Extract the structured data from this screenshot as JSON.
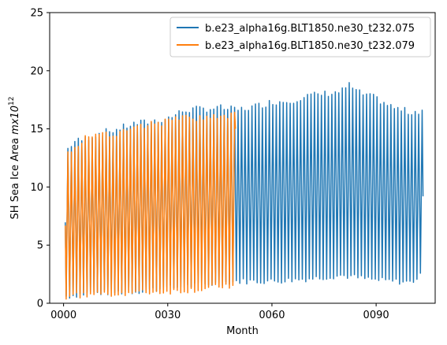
{
  "chart_data": {
    "type": "line",
    "title": "",
    "xlabel": "Month",
    "ylabel_main": "SH Sea Ice Area ",
    "ylabel_unit_base": "mx10",
    "ylabel_unit_exp": "12",
    "xlim": [
      -4,
      107
    ],
    "ylim": [
      0,
      25
    ],
    "x_ticks": [
      0,
      30,
      60,
      90
    ],
    "x_tick_labels": [
      "0000",
      "0030",
      "0060",
      "0090"
    ],
    "y_ticks": [
      0,
      5,
      10,
      15,
      20,
      25
    ],
    "y_tick_labels": [
      "0",
      "5",
      "10",
      "15",
      "20",
      "25"
    ],
    "grid": false,
    "legend_position": "upper-right",
    "cycle_note_x_units": "years",
    "series": [
      {
        "name": "b.e23_alpha16g.BLT1850.ne30_t232.075",
        "color": "#1f77b4",
        "x_start": 0.5,
        "x_end": 103.5,
        "max_by_year": [
          {
            "x": 1,
            "y": 13.2
          },
          {
            "x": 3,
            "y": 13.9
          },
          {
            "x": 5,
            "y": 14.0
          },
          {
            "x": 10,
            "y": 14.6
          },
          {
            "x": 15,
            "y": 14.9
          },
          {
            "x": 20,
            "y": 15.4
          },
          {
            "x": 25,
            "y": 15.6
          },
          {
            "x": 30,
            "y": 15.9
          },
          {
            "x": 35,
            "y": 16.6
          },
          {
            "x": 40,
            "y": 16.7
          },
          {
            "x": 45,
            "y": 16.8
          },
          {
            "x": 50,
            "y": 16.6
          },
          {
            "x": 55,
            "y": 16.9
          },
          {
            "x": 60,
            "y": 17.3
          },
          {
            "x": 65,
            "y": 17.4
          },
          {
            "x": 70,
            "y": 17.8
          },
          {
            "x": 75,
            "y": 18.0
          },
          {
            "x": 80,
            "y": 18.2
          },
          {
            "x": 82,
            "y": 18.8
          },
          {
            "x": 85,
            "y": 18.1
          },
          {
            "x": 90,
            "y": 17.6
          },
          {
            "x": 95,
            "y": 16.8
          },
          {
            "x": 100,
            "y": 16.4
          },
          {
            "x": 103,
            "y": 16.6
          }
        ],
        "min_by_year": [
          {
            "x": 1,
            "y": 0.6
          },
          {
            "x": 5,
            "y": 0.8
          },
          {
            "x": 10,
            "y": 0.9
          },
          {
            "x": 20,
            "y": 1.0
          },
          {
            "x": 30,
            "y": 1.3
          },
          {
            "x": 40,
            "y": 1.6
          },
          {
            "x": 50,
            "y": 1.9
          },
          {
            "x": 60,
            "y": 1.9
          },
          {
            "x": 70,
            "y": 2.1
          },
          {
            "x": 80,
            "y": 2.4
          },
          {
            "x": 90,
            "y": 2.0
          },
          {
            "x": 100,
            "y": 1.8
          },
          {
            "x": 103,
            "y": 2.4
          }
        ],
        "last_value": {
          "x": 103.5,
          "y": 9.2
        }
      },
      {
        "name": "b.e23_alpha16g.BLT1850.ne30_t232.079",
        "color": "#ff7f0e",
        "x_start": 0.5,
        "x_end": 49.5,
        "max_by_year": [
          {
            "x": 1,
            "y": 13.0
          },
          {
            "x": 5,
            "y": 13.9
          },
          {
            "x": 10,
            "y": 14.8
          },
          {
            "x": 15,
            "y": 14.5
          },
          {
            "x": 20,
            "y": 15.0
          },
          {
            "x": 25,
            "y": 15.4
          },
          {
            "x": 30,
            "y": 15.6
          },
          {
            "x": 35,
            "y": 15.9
          },
          {
            "x": 40,
            "y": 15.9
          },
          {
            "x": 45,
            "y": 16.0
          },
          {
            "x": 49,
            "y": 16.2
          }
        ],
        "min_by_year": [
          {
            "x": 1,
            "y": 0.6
          },
          {
            "x": 5,
            "y": 0.7
          },
          {
            "x": 10,
            "y": 0.8
          },
          {
            "x": 20,
            "y": 0.9
          },
          {
            "x": 30,
            "y": 1.0
          },
          {
            "x": 40,
            "y": 1.2
          },
          {
            "x": 49,
            "y": 1.6
          }
        ],
        "last_value": {
          "x": 49.5,
          "y": 15.0
        }
      }
    ]
  }
}
